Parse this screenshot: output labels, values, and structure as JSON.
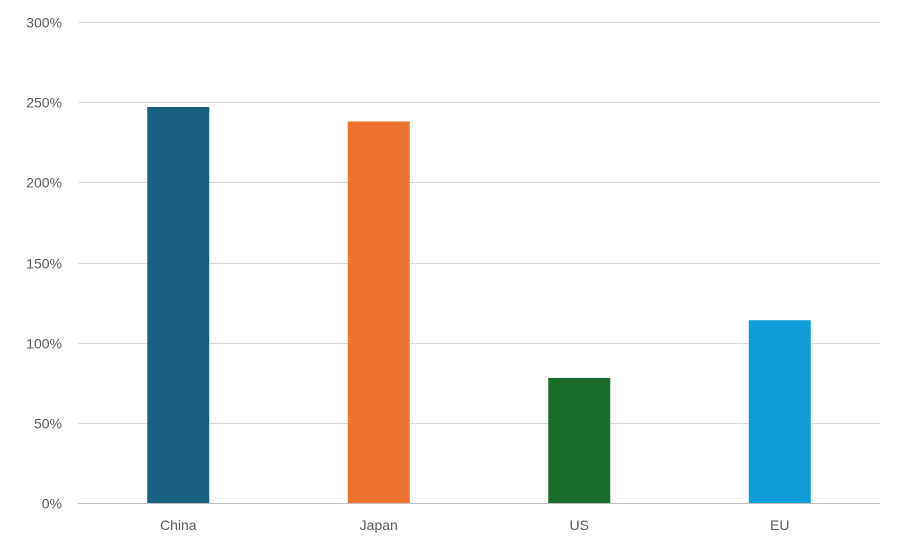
{
  "chart_data": {
    "type": "bar",
    "title": "",
    "xlabel": "",
    "ylabel": "",
    "categories": [
      "China",
      "Japan",
      "US",
      "EU"
    ],
    "values": [
      247,
      238,
      78,
      114
    ],
    "colors": [
      "#17607f",
      "#ec7330",
      "#1b6b29",
      "#109ed8"
    ],
    "ylim": [
      0,
      300
    ],
    "yticks": [
      0,
      50,
      100,
      150,
      200,
      250,
      300
    ],
    "ytick_labels": [
      "0%",
      "50%",
      "100%",
      "150%",
      "200%",
      "250%",
      "300%"
    ],
    "grid": true,
    "legend": "none"
  }
}
